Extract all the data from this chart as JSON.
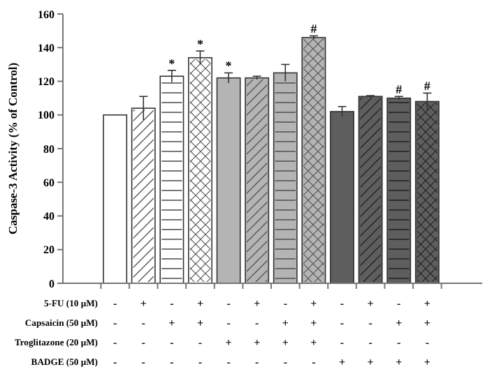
{
  "chart_data": {
    "type": "bar",
    "ylabel": "Caspase-3 Activity (% of Control)",
    "categories": [
      "-\n-\n-\n-",
      "+\n-\n-\n-",
      "-\n+\n-\n-",
      "+\n+\n-\n-",
      "-\n-\n+\n-",
      "+\n-\n+\n-",
      "-\n+\n+\n-",
      "+\n+\n+\n-",
      "-\n-\n-\n+",
      "+\n-\n-\n+",
      "-\n+\n-\n+",
      "+\n+\n-\n+"
    ],
    "values": [
      100,
      104,
      123,
      134,
      122,
      122,
      125,
      146,
      102,
      111,
      110,
      108
    ],
    "errors": [
      null,
      7,
      3.5,
      4,
      3,
      1,
      5,
      1,
      3,
      0.5,
      1,
      5
    ],
    "colors": [
      "#ffffff",
      "#ffffff",
      "#ffffff",
      "#ffffff",
      "#b4b4b4",
      "#b4b4b4",
      "#b4b4b4",
      "#b4b4b4",
      "#5e5e5e",
      "#5e5e5e",
      "#5e5e5e",
      "#5e5e5e"
    ],
    "ylim": [
      0,
      160
    ],
    "yticks": [
      0,
      20,
      40,
      60,
      80,
      100,
      120,
      140,
      160
    ],
    "grid": false,
    "annotations": [
      {
        "text": "*",
        "x": "-\n+\n-\n-",
        "y": 126.5
      },
      {
        "text": "*",
        "x": "+\n+\n-\n-",
        "y": 138
      },
      {
        "text": "*",
        "x": "-\n-\n+\n-",
        "y": 125
      },
      {
        "text": "#",
        "x": "+\n+\n+\n-",
        "y": 147
      },
      {
        "text": "#",
        "x": "-\n+\n-\n+",
        "y": 111
      },
      {
        "text": "#",
        "x": "+\n+\n-\n+",
        "y": 113
      },
      "5-FU (10 μM)",
      "Capsaicin (50 μM)",
      "Troglitazone (20 μM)",
      "BADGE (50 μM)"
    ]
  }
}
